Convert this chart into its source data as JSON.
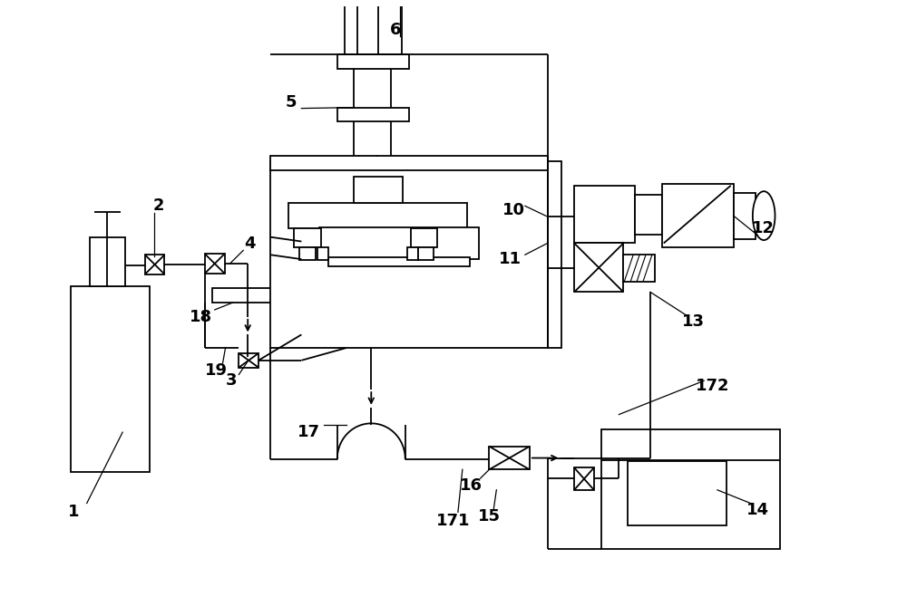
{
  "bg_color": "#ffffff",
  "lc": "#000000",
  "lw": 1.3,
  "fig_w": 10.0,
  "fig_h": 6.8
}
